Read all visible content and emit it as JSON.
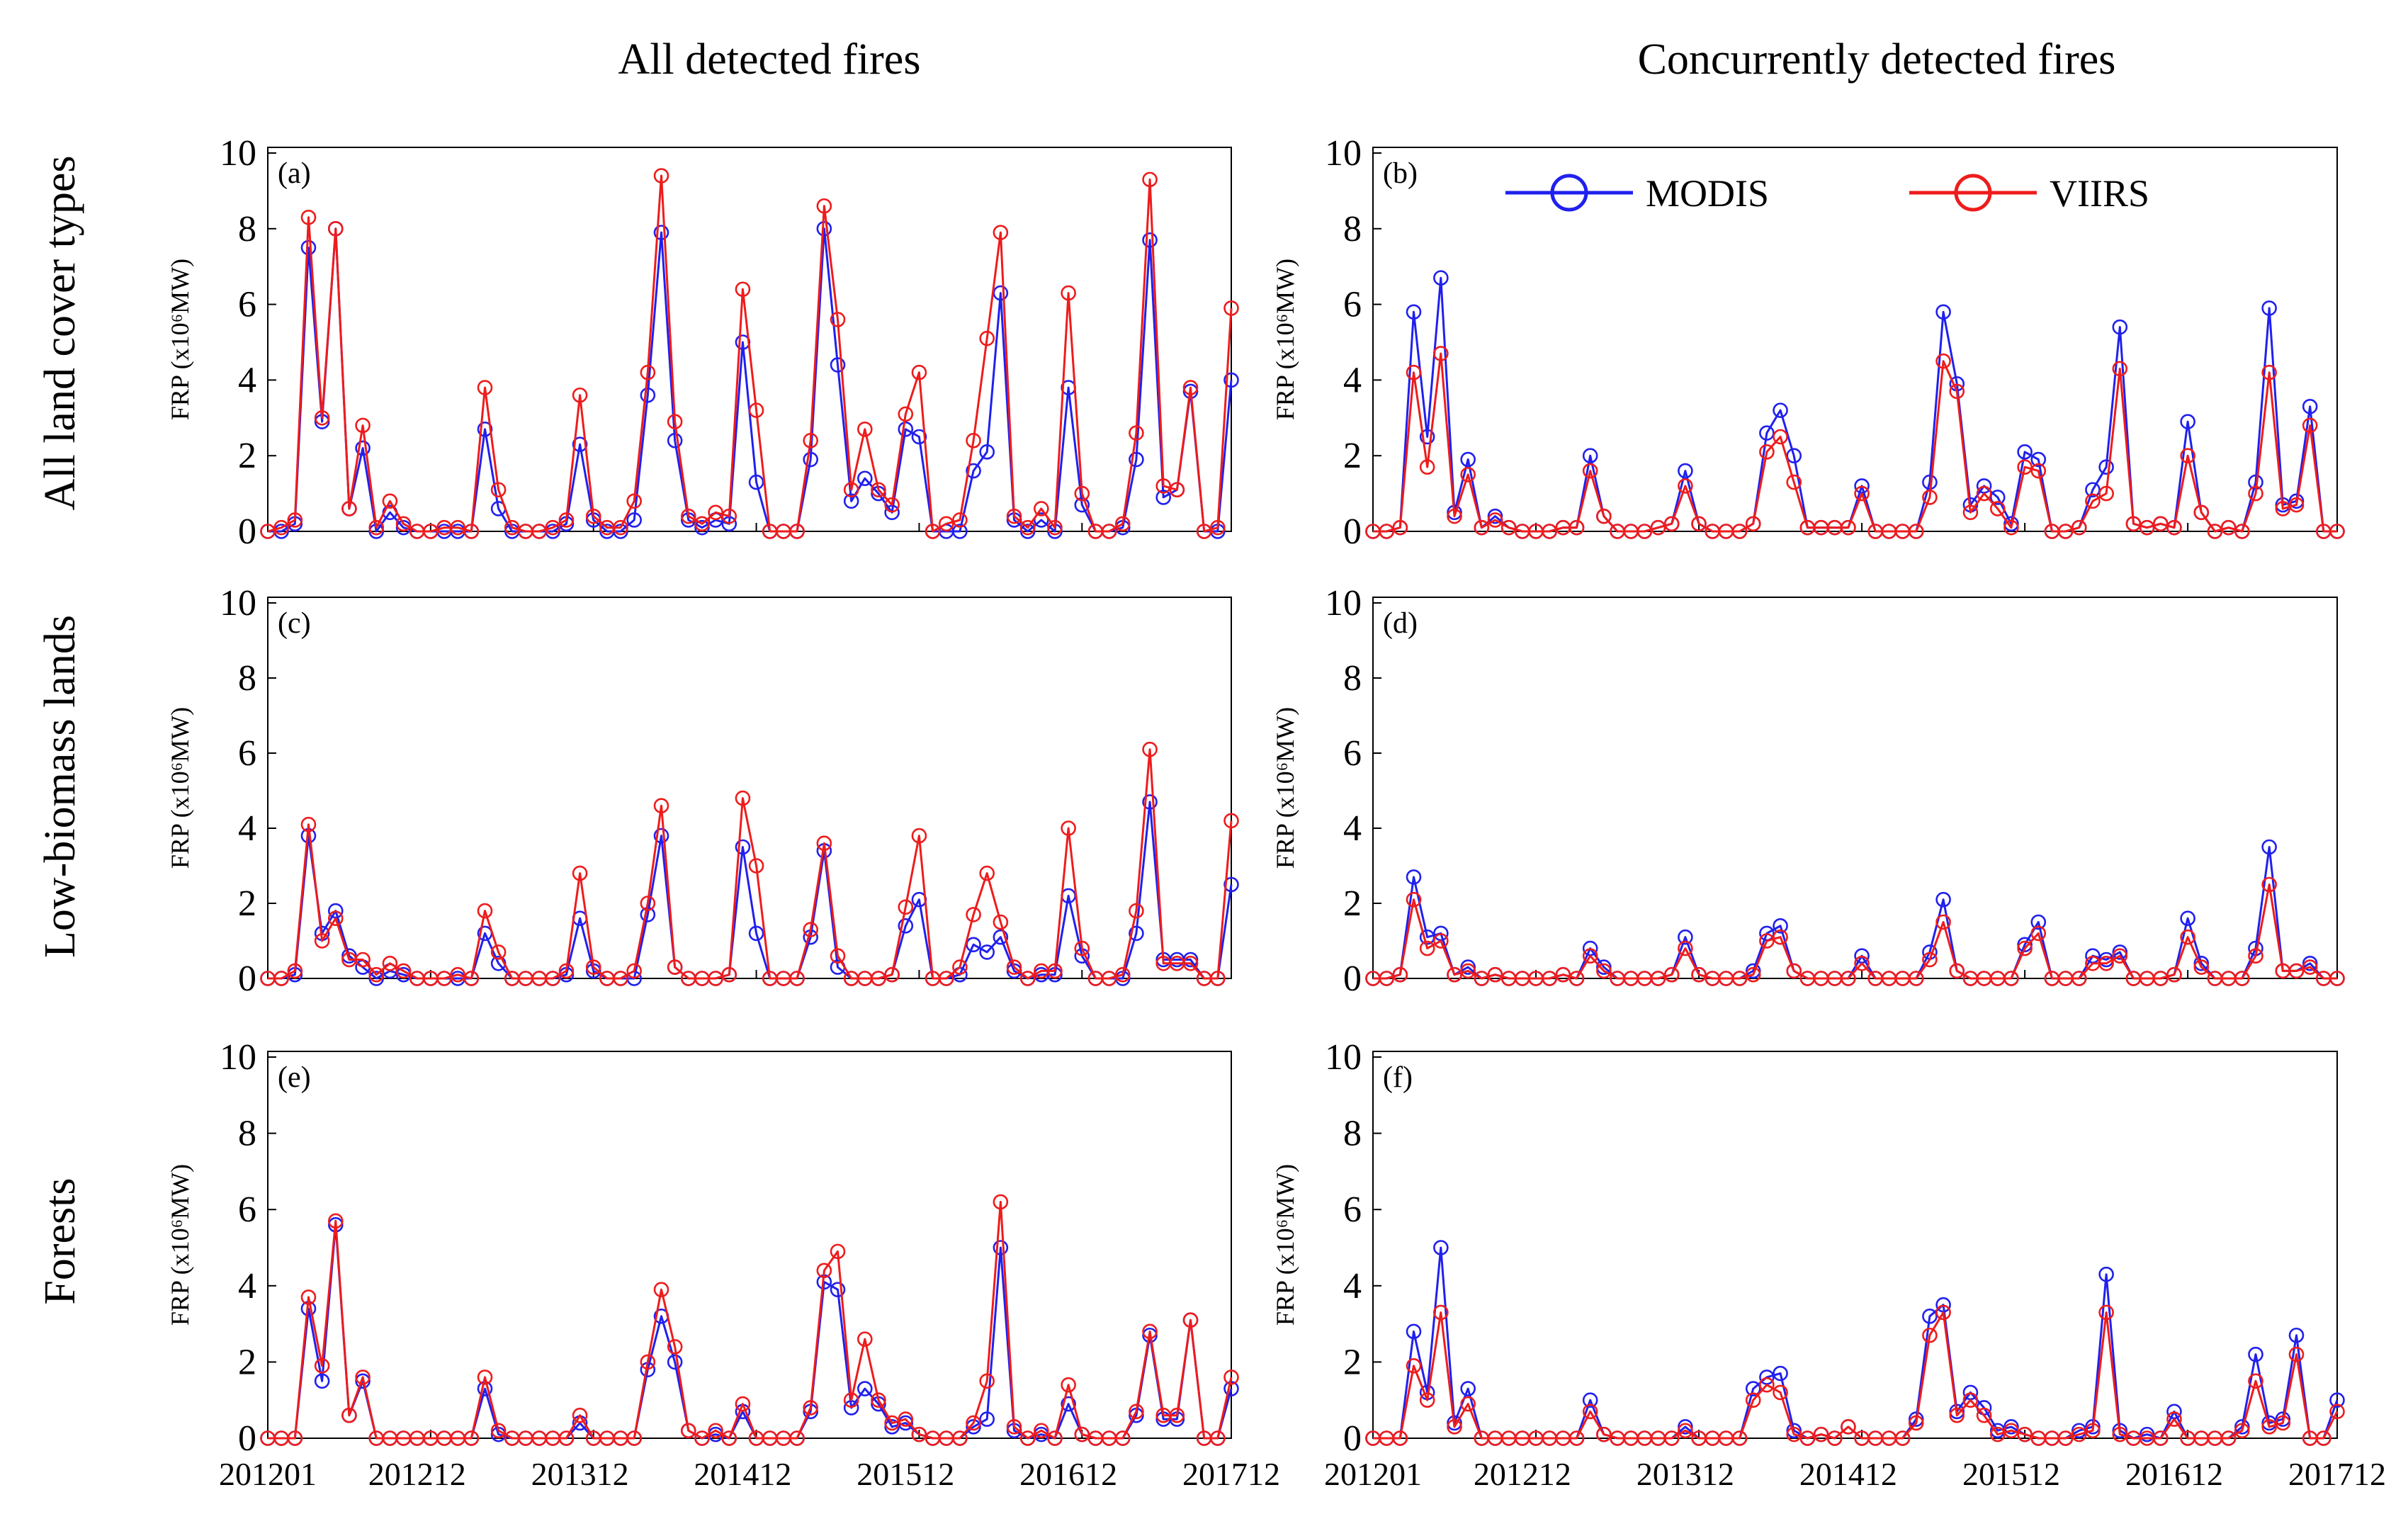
{
  "figure": {
    "column_titles": [
      "All detected fires",
      "Concurrently detected fires"
    ],
    "row_titles": [
      "All land cover types",
      "Low-biomass lands",
      "Forests"
    ],
    "y_label": "FRP (x10⁶MW)",
    "x_tick_labels": [
      "201201",
      "201212",
      "201312",
      "201412",
      "201512",
      "201612",
      "201712"
    ],
    "y_tick_labels": [
      "0",
      "2",
      "4",
      "6",
      "8",
      "10"
    ],
    "legend": [
      {
        "name": "MODIS",
        "color": "#2020ee"
      },
      {
        "name": "VIIRS",
        "color": "#ee1c1c"
      }
    ]
  },
  "chart_data": [
    {
      "type": "line",
      "panel": "(a)",
      "row": "All land cover types",
      "column": "All detected fires",
      "ylabel": "FRP (x10⁶MW)",
      "ylim": [
        0,
        10
      ],
      "x_months": "2012-01 to 2017-12 (72 months)",
      "series": [
        {
          "name": "MODIS",
          "color": "#2020ee",
          "values": [
            0,
            0,
            0.2,
            7.5,
            2.9,
            8.0,
            0.6,
            2.2,
            0,
            0.5,
            0.1,
            0,
            0,
            0,
            0,
            0,
            2.7,
            0.6,
            0,
            0,
            0,
            0,
            0.2,
            2.3,
            0.3,
            0,
            0,
            0.3,
            3.6,
            7.9,
            2.4,
            0.3,
            0.1,
            0.3,
            0.2,
            5.0,
            1.3,
            0,
            0,
            0,
            1.9,
            8.0,
            4.4,
            0.8,
            1.4,
            1.0,
            0.5,
            2.7,
            2.5,
            0,
            0,
            0,
            1.6,
            2.1,
            6.3,
            0.3,
            0,
            0.3,
            0,
            3.8,
            0.7,
            0,
            0,
            0.1,
            1.9,
            7.7,
            0.9,
            1.1,
            3.7,
            0,
            0,
            4.0
          ]
        },
        {
          "name": "VIIRS",
          "color": "#ee1c1c",
          "values": [
            0,
            0.1,
            0.3,
            8.3,
            3.0,
            8.0,
            0.6,
            2.8,
            0.1,
            0.8,
            0.2,
            0,
            0,
            0.1,
            0.1,
            0,
            3.8,
            1.1,
            0.1,
            0,
            0,
            0.1,
            0.3,
            3.6,
            0.4,
            0.1,
            0.1,
            0.8,
            4.2,
            9.4,
            2.9,
            0.4,
            0.2,
            0.5,
            0.4,
            6.4,
            3.2,
            0,
            0,
            0,
            2.4,
            8.6,
            5.6,
            1.1,
            2.7,
            1.1,
            0.7,
            3.1,
            4.2,
            0,
            0.2,
            0.3,
            2.4,
            5.1,
            7.9,
            0.4,
            0.1,
            0.6,
            0.1,
            6.3,
            1.0,
            0,
            0,
            0.2,
            2.6,
            9.3,
            1.2,
            1.1,
            3.8,
            0,
            0.1,
            5.9
          ]
        }
      ]
    },
    {
      "type": "line",
      "panel": "(b)",
      "row": "All land cover types",
      "column": "Concurrently detected fires",
      "ylabel": "FRP (x10⁶MW)",
      "ylim": [
        0,
        10
      ],
      "x_months": "2012-01 to 2017-12 (72 months)",
      "legend_position": "top-center",
      "series": [
        {
          "name": "MODIS",
          "color": "#2020ee",
          "values": [
            0,
            0,
            0.1,
            5.8,
            2.5,
            6.7,
            0.5,
            1.9,
            0.1,
            0.4,
            0.1,
            0,
            0,
            0,
            0.1,
            0.1,
            2.0,
            0.4,
            0,
            0,
            0,
            0.1,
            0.2,
            1.6,
            0.2,
            0,
            0,
            0,
            0.2,
            2.6,
            3.2,
            2.0,
            0.1,
            0.1,
            0.1,
            0.1,
            1.2,
            0,
            0,
            0,
            0,
            1.3,
            5.8,
            3.9,
            0.7,
            1.2,
            0.9,
            0.2,
            2.1,
            1.9,
            0,
            0,
            0.1,
            1.1,
            1.7,
            5.4,
            0.2,
            0.1,
            0.2,
            0.1,
            2.9,
            0.5,
            0,
            0.1,
            0,
            1.3,
            5.9,
            0.7,
            0.8,
            3.3,
            0,
            0
          ]
        },
        {
          "name": "VIIRS",
          "color": "#ee1c1c",
          "values": [
            0,
            0,
            0.1,
            4.2,
            1.7,
            4.7,
            0.4,
            1.5,
            0.1,
            0.3,
            0.1,
            0,
            0,
            0,
            0.1,
            0.1,
            1.6,
            0.4,
            0,
            0,
            0,
            0.1,
            0.2,
            1.2,
            0.2,
            0,
            0,
            0,
            0.2,
            2.1,
            2.5,
            1.3,
            0.1,
            0.1,
            0.1,
            0.1,
            1.0,
            0,
            0,
            0,
            0,
            0.9,
            4.5,
            3.7,
            0.5,
            1.0,
            0.6,
            0.1,
            1.7,
            1.6,
            0,
            0,
            0.1,
            0.8,
            1.0,
            4.3,
            0.2,
            0.1,
            0.2,
            0.1,
            2.0,
            0.5,
            0,
            0.1,
            0,
            1.0,
            4.2,
            0.6,
            0.7,
            2.8,
            0,
            0
          ]
        }
      ]
    },
    {
      "type": "line",
      "panel": "(c)",
      "row": "Low-biomass lands",
      "column": "All detected fires",
      "ylabel": "FRP (x10⁶MW)",
      "ylim": [
        0,
        10
      ],
      "x_months": "2012-01 to 2017-12 (72 months)",
      "series": [
        {
          "name": "MODIS",
          "color": "#2020ee",
          "values": [
            0,
            0,
            0.1,
            3.8,
            1.2,
            1.8,
            0.6,
            0.3,
            0,
            0.2,
            0.1,
            0,
            0,
            0,
            0,
            0,
            1.2,
            0.4,
            0,
            0,
            0,
            0,
            0.1,
            1.6,
            0.2,
            0,
            0,
            0,
            1.7,
            3.8,
            0.3,
            0,
            0,
            0,
            0.1,
            3.5,
            1.2,
            0,
            0,
            0,
            1.1,
            3.4,
            0.3,
            0,
            0,
            0,
            0.1,
            1.4,
            2.1,
            0,
            0,
            0.1,
            0.9,
            0.7,
            1.1,
            0.2,
            0,
            0.1,
            0.1,
            2.2,
            0.6,
            0,
            0,
            0,
            1.2,
            4.7,
            0.5,
            0.5,
            0.5,
            0,
            0,
            2.5
          ]
        },
        {
          "name": "VIIRS",
          "color": "#ee1c1c",
          "values": [
            0,
            0,
            0.2,
            4.1,
            1.0,
            1.6,
            0.5,
            0.5,
            0.1,
            0.4,
            0.2,
            0,
            0,
            0,
            0.1,
            0,
            1.8,
            0.7,
            0,
            0,
            0,
            0,
            0.2,
            2.8,
            0.3,
            0,
            0,
            0.2,
            2.0,
            4.6,
            0.3,
            0,
            0,
            0,
            0.1,
            4.8,
            3.0,
            0,
            0,
            0,
            1.3,
            3.6,
            0.6,
            0,
            0,
            0,
            0.1,
            1.9,
            3.8,
            0,
            0,
            0.3,
            1.7,
            2.8,
            1.5,
            0.3,
            0,
            0.2,
            0.2,
            4.0,
            0.8,
            0,
            0,
            0.1,
            1.8,
            6.1,
            0.4,
            0.4,
            0.4,
            0,
            0,
            4.2
          ]
        }
      ]
    },
    {
      "type": "line",
      "panel": "(d)",
      "row": "Low-biomass lands",
      "column": "Concurrently detected fires",
      "ylabel": "FRP (x10⁶MW)",
      "ylim": [
        0,
        10
      ],
      "x_months": "2012-01 to 2017-12 (72 months)",
      "series": [
        {
          "name": "MODIS",
          "color": "#2020ee",
          "values": [
            0,
            0,
            0.1,
            2.7,
            1.1,
            1.2,
            0.1,
            0.3,
            0,
            0.1,
            0,
            0,
            0,
            0,
            0.1,
            0,
            0.8,
            0.3,
            0,
            0,
            0,
            0,
            0.1,
            1.1,
            0.1,
            0,
            0,
            0,
            0.2,
            1.2,
            1.4,
            0.2,
            0,
            0,
            0,
            0,
            0.6,
            0,
            0,
            0,
            0,
            0.7,
            2.1,
            0.2,
            0,
            0,
            0,
            0,
            0.9,
            1.5,
            0,
            0,
            0,
            0.6,
            0.5,
            0.7,
            0,
            0,
            0,
            0.1,
            1.6,
            0.4,
            0,
            0,
            0,
            0.8,
            3.5,
            0.2,
            0.2,
            0.4,
            0,
            0
          ]
        },
        {
          "name": "VIIRS",
          "color": "#ee1c1c",
          "values": [
            0,
            0,
            0.1,
            2.1,
            0.8,
            1.0,
            0.1,
            0.2,
            0,
            0.1,
            0,
            0,
            0,
            0,
            0.1,
            0,
            0.6,
            0.2,
            0,
            0,
            0,
            0,
            0.1,
            0.8,
            0.1,
            0,
            0,
            0,
            0.1,
            1.0,
            1.1,
            0.2,
            0,
            0,
            0,
            0,
            0.4,
            0,
            0,
            0,
            0,
            0.5,
            1.5,
            0.2,
            0,
            0,
            0,
            0,
            0.8,
            1.2,
            0,
            0,
            0,
            0.4,
            0.4,
            0.6,
            0,
            0,
            0,
            0.1,
            1.1,
            0.3,
            0,
            0,
            0,
            0.6,
            2.5,
            0.2,
            0.2,
            0.3,
            0,
            0
          ]
        }
      ]
    },
    {
      "type": "line",
      "panel": "(e)",
      "row": "Forests",
      "column": "All detected fires",
      "ylabel": "FRP (x10⁶MW)",
      "ylim": [
        0,
        10
      ],
      "x_months": "2012-01 to 2017-12 (72 months)",
      "series": [
        {
          "name": "MODIS",
          "color": "#2020ee",
          "values": [
            0,
            0,
            0,
            3.4,
            1.5,
            5.6,
            0.6,
            1.5,
            0,
            0,
            0,
            0,
            0,
            0,
            0,
            0,
            1.3,
            0.1,
            0,
            0,
            0,
            0,
            0,
            0.4,
            0,
            0,
            0,
            0,
            1.8,
            3.2,
            2.0,
            0.2,
            0,
            0.1,
            0,
            0.7,
            0,
            0,
            0,
            0,
            0.7,
            4.1,
            3.9,
            0.8,
            1.3,
            0.9,
            0.3,
            0.4,
            0.1,
            0,
            0,
            0,
            0.3,
            0.5,
            5.0,
            0.2,
            0,
            0.1,
            0,
            0.9,
            0.1,
            0,
            0,
            0,
            0.6,
            2.7,
            0.5,
            0.5,
            3.1,
            0,
            0,
            1.3
          ]
        },
        {
          "name": "VIIRS",
          "color": "#ee1c1c",
          "values": [
            0,
            0,
            0,
            3.7,
            1.9,
            5.7,
            0.6,
            1.6,
            0,
            0,
            0,
            0,
            0,
            0,
            0,
            0,
            1.6,
            0.2,
            0,
            0,
            0,
            0,
            0,
            0.6,
            0,
            0,
            0,
            0,
            2.0,
            3.9,
            2.4,
            0.2,
            0,
            0.2,
            0,
            0.9,
            0,
            0,
            0,
            0,
            0.8,
            4.4,
            4.9,
            1.0,
            2.6,
            1.0,
            0.4,
            0.5,
            0.1,
            0,
            0,
            0,
            0.4,
            1.5,
            6.2,
            0.3,
            0,
            0.2,
            0,
            1.4,
            0.1,
            0,
            0,
            0,
            0.7,
            2.8,
            0.6,
            0.6,
            3.1,
            0,
            0,
            1.6
          ]
        }
      ]
    },
    {
      "type": "line",
      "panel": "(f)",
      "row": "Forests",
      "column": "Concurrently detected fires",
      "ylabel": "FRP (x10⁶MW)",
      "ylim": [
        0,
        10
      ],
      "x_months": "2012-01 to 2017-12 (72 months)",
      "series": [
        {
          "name": "MODIS",
          "color": "#2020ee",
          "values": [
            0,
            0,
            0,
            2.8,
            1.2,
            5.0,
            0.4,
            1.3,
            0,
            0,
            0,
            0,
            0,
            0,
            0,
            0,
            1.0,
            0.1,
            0,
            0,
            0,
            0,
            0,
            0.3,
            0,
            0,
            0,
            0,
            1.3,
            1.6,
            1.7,
            0.2,
            0,
            0.1,
            0,
            0.3,
            0,
            0,
            0,
            0,
            0.5,
            3.2,
            3.5,
            0.7,
            1.2,
            0.8,
            0.2,
            0.3,
            0.1,
            0,
            0,
            0,
            0.2,
            0.3,
            4.3,
            0.2,
            0,
            0.1,
            0,
            0.7,
            0,
            0,
            0,
            0,
            0.3,
            2.2,
            0.4,
            0.5,
            2.7,
            0,
            0,
            1.0
          ]
        },
        {
          "name": "VIIRS",
          "color": "#ee1c1c",
          "values": [
            0,
            0,
            0,
            1.9,
            1.0,
            3.3,
            0.3,
            0.9,
            0,
            0,
            0,
            0,
            0,
            0,
            0,
            0,
            0.7,
            0.1,
            0,
            0,
            0,
            0,
            0,
            0.2,
            0,
            0,
            0,
            0,
            1.0,
            1.4,
            1.2,
            0.1,
            0,
            0.1,
            0,
            0.3,
            0,
            0,
            0,
            0,
            0.4,
            2.7,
            3.3,
            0.6,
            1.0,
            0.6,
            0.1,
            0.2,
            0.1,
            0,
            0,
            0,
            0.1,
            0.2,
            3.3,
            0.1,
            0,
            0,
            0,
            0.5,
            0,
            0,
            0,
            0,
            0.2,
            1.5,
            0.3,
            0.4,
            2.2,
            0,
            0,
            0.7
          ]
        }
      ]
    }
  ]
}
